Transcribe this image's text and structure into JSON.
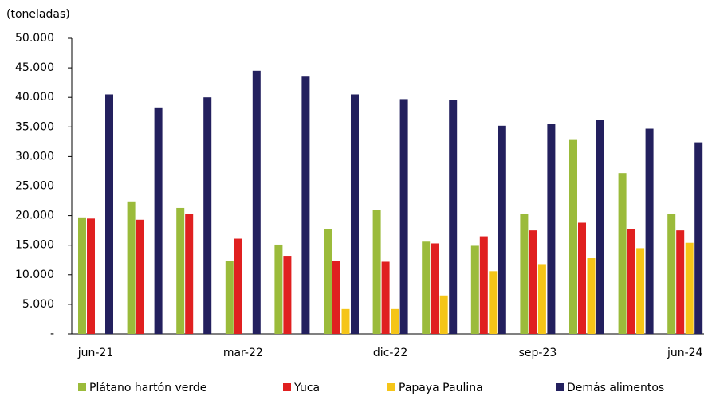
{
  "chart_data": {
    "type": "bar",
    "y_label": "(toneladas)",
    "categories": [
      "jun-21",
      null,
      null,
      "mar-22",
      null,
      null,
      "dic-22",
      null,
      null,
      "sep-23",
      null,
      null,
      "jun-24"
    ],
    "series": [
      {
        "name": "Plátano hartón verde",
        "color": "#9bbb3b",
        "values": [
          19700,
          22400,
          21300,
          12300,
          15100,
          17700,
          21000,
          15600,
          14900,
          20300,
          32800,
          27200,
          20300
        ]
      },
      {
        "name": "Yuca",
        "color": "#e02020",
        "values": [
          19500,
          19300,
          20300,
          16100,
          13200,
          12300,
          12200,
          15300,
          16500,
          17500,
          18800,
          17700,
          17500
        ]
      },
      {
        "name": "Papaya Paulina",
        "color": "#f5c518",
        "values": [
          null,
          null,
          null,
          null,
          null,
          4200,
          4200,
          6500,
          10600,
          11800,
          12800,
          14500,
          15400
        ]
      },
      {
        "name": "Demás alimentos",
        "color": "#23205e",
        "values": [
          40500,
          38300,
          40000,
          44500,
          43500,
          40500,
          39700,
          39500,
          35200,
          35500,
          36200,
          34700,
          32400
        ]
      }
    ],
    "ylim": [
      0,
      50000
    ],
    "yticks": [
      {
        "value": 0,
        "label": "-"
      },
      {
        "value": 5000,
        "label": "5.000"
      },
      {
        "value": 10000,
        "label": "10.000"
      },
      {
        "value": 15000,
        "label": "15.000"
      },
      {
        "value": 20000,
        "label": "20.000"
      },
      {
        "value": 25000,
        "label": "25.000"
      },
      {
        "value": 30000,
        "label": "30.000"
      },
      {
        "value": 35000,
        "label": "35.000"
      },
      {
        "value": 40000,
        "label": "40.000"
      },
      {
        "value": 45000,
        "label": "45.000"
      },
      {
        "value": 50000,
        "label": "50.000"
      }
    ],
    "legend": "bottom"
  }
}
